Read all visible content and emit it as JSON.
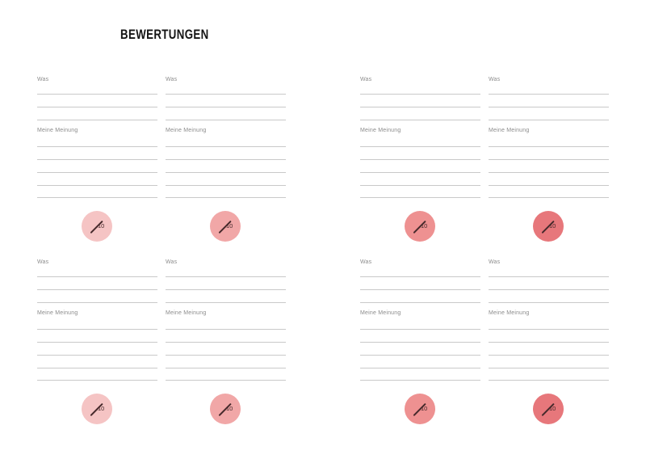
{
  "page": {
    "title": "BEWERTUNGEN",
    "background_color": "#ffffff",
    "title_color": "#141414",
    "label_color": "#8c8c8c",
    "line_color": "#c9c9c9",
    "rating_ink_color": "#46292b"
  },
  "sections": [
    {
      "was_label": "Was",
      "opinion_label": "Meine Meinung",
      "rating_max": "10",
      "circle_color": "#f5c4c4"
    },
    {
      "was_label": "Was",
      "opinion_label": "Meine Meinung",
      "rating_max": "10",
      "circle_color": "#f1a7a7"
    },
    {
      "was_label": "Was",
      "opinion_label": "Meine Meinung",
      "rating_max": "10",
      "circle_color": "#ee9191"
    },
    {
      "was_label": "Was",
      "opinion_label": "Meine Meinung",
      "rating_max": "10",
      "circle_color": "#e7777b"
    },
    {
      "was_label": "Was",
      "opinion_label": "Meine Meinung",
      "rating_max": "10",
      "circle_color": "#f5c4c4"
    },
    {
      "was_label": "Was",
      "opinion_label": "Meine Meinung",
      "rating_max": "10",
      "circle_color": "#f1a7a7"
    },
    {
      "was_label": "Was",
      "opinion_label": "Meine Meinung",
      "rating_max": "10",
      "circle_color": "#ee9191"
    },
    {
      "was_label": "Was",
      "opinion_label": "Meine Meinung",
      "rating_max": "10",
      "circle_color": "#e7777b"
    }
  ]
}
